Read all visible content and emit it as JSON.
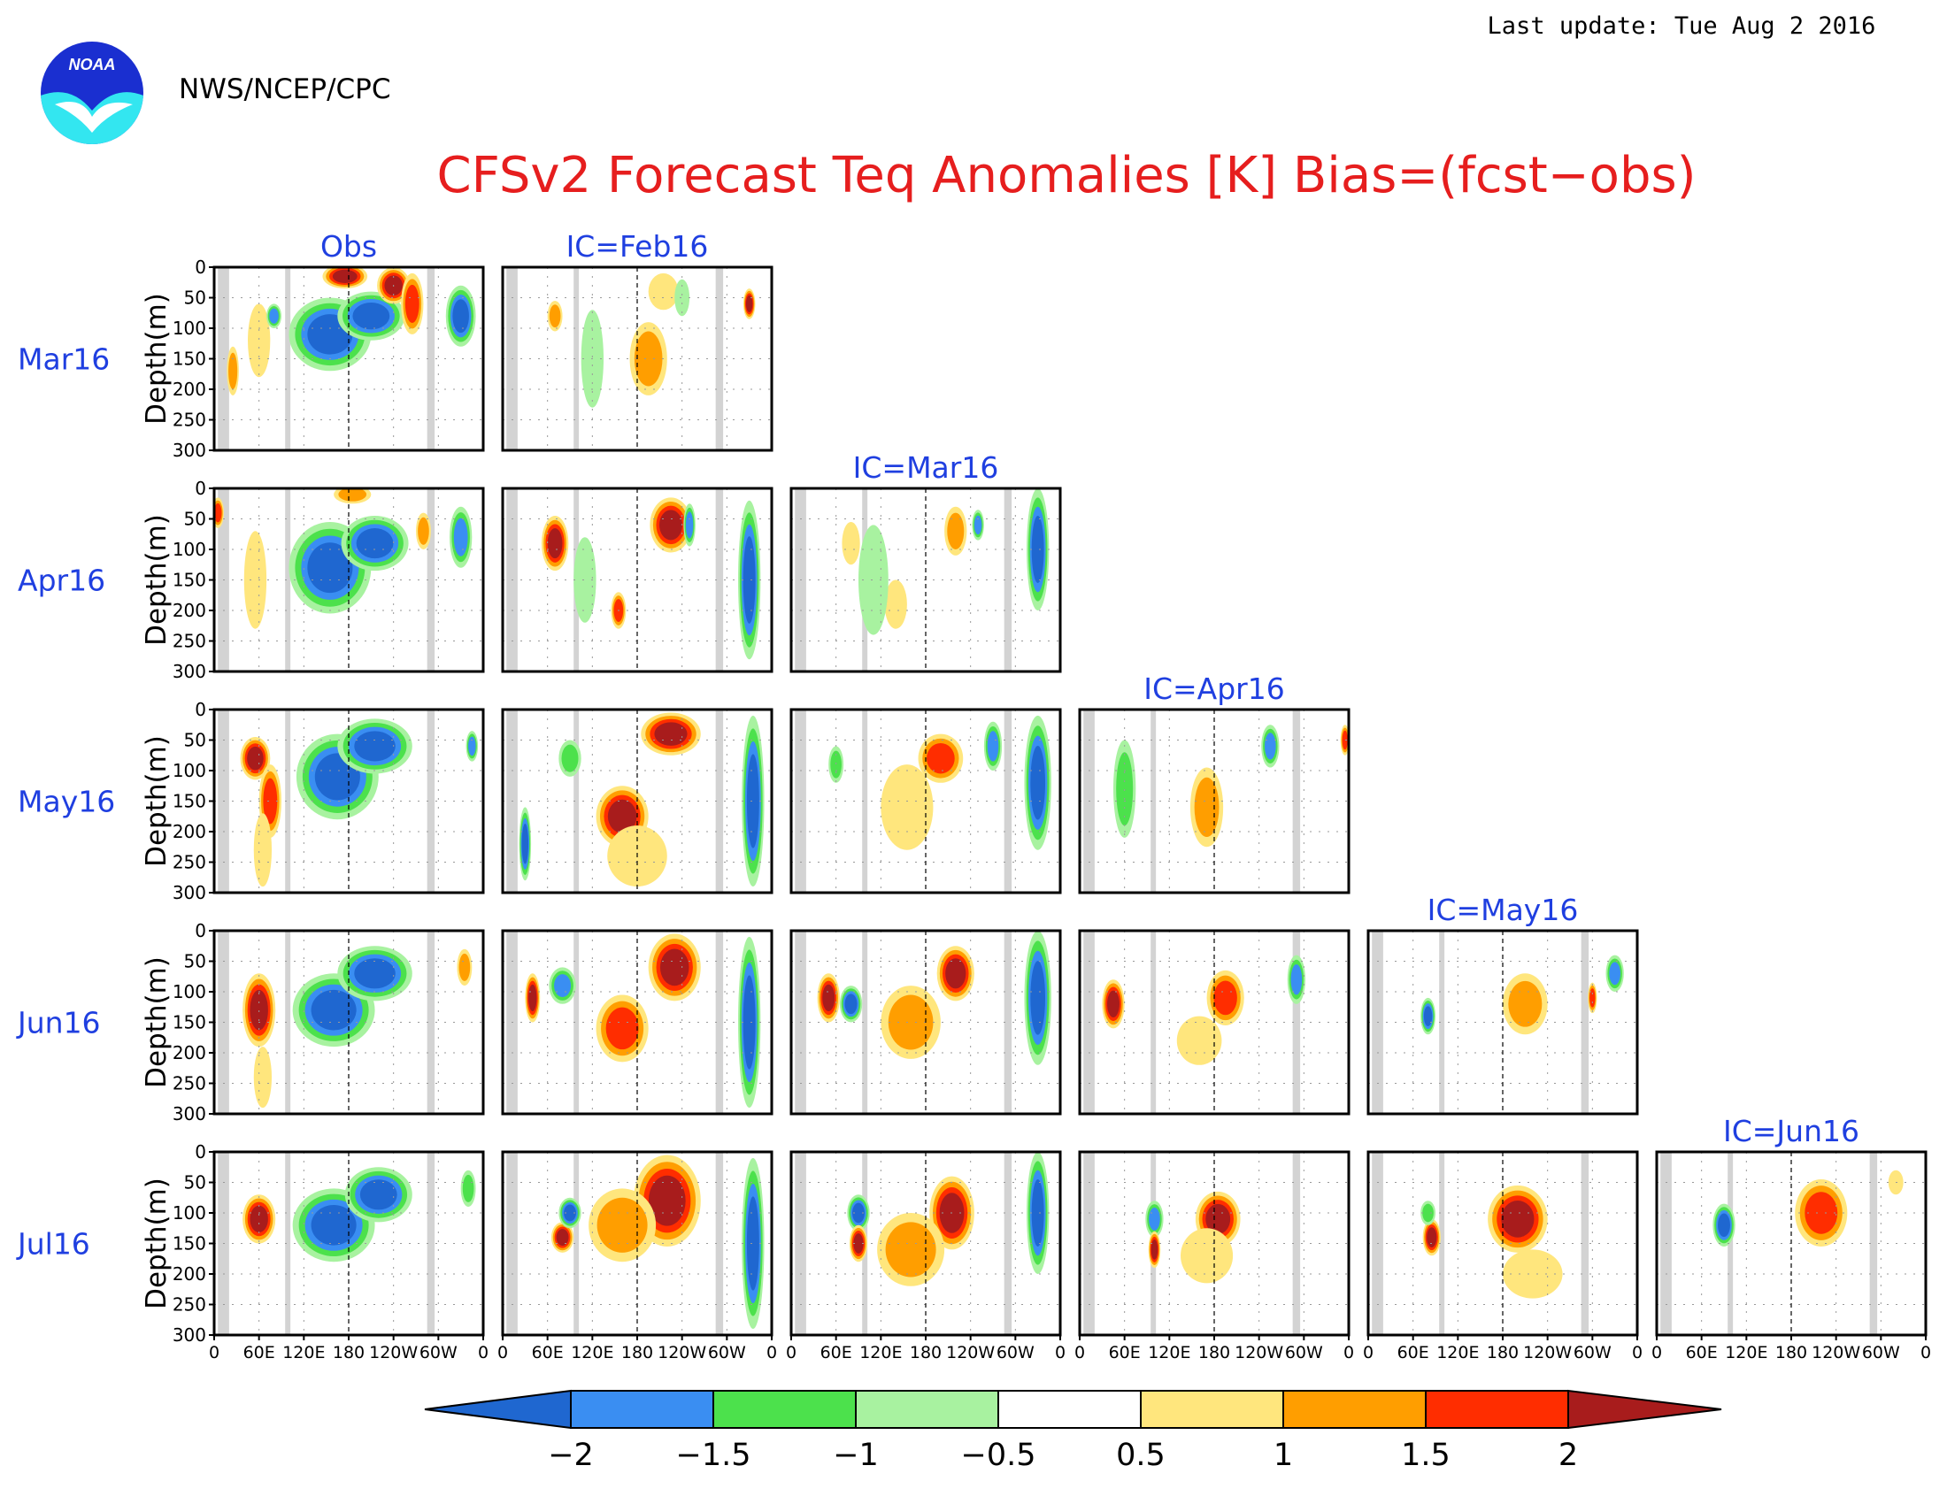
{
  "header": {
    "last_update": "Last update: Tue Aug  2 2016",
    "agency": "NWS/NCEP/CPC",
    "logo_text": "NOAA",
    "title": "CFSv2 Forecast Teq Anomalies [K] Bias=(fcst−obs)"
  },
  "chart_data": {
    "type": "heatmap",
    "title": "CFSv2 Forecast Teq Anomalies [K] Bias=(fcst−obs)",
    "ylabel": "Depth(m)",
    "ylim": [
      300,
      0
    ],
    "xlim": [
      0,
      360
    ],
    "y_ticks": [
      "0",
      "50",
      "100",
      "150",
      "200",
      "250",
      "300"
    ],
    "x_ticks": [
      "0",
      "60E",
      "120E",
      "180",
      "120W",
      "60W",
      "0"
    ],
    "columns": [
      "Obs",
      "IC=Feb16",
      "IC=Mar16",
      "IC=Apr16",
      "IC=May16",
      "IC=Jun16"
    ],
    "rows": [
      "Mar16",
      "Apr16",
      "May16",
      "Jun16",
      "Jul16"
    ],
    "grid": true,
    "legend": {
      "placement": "bottom",
      "levels": [
        "−2",
        "−1.5",
        "−1",
        "−0.5",
        "0.5",
        "1",
        "1.5",
        "2"
      ],
      "colors": [
        "#1f67d0",
        "#3a8ef2",
        "#4ce14c",
        "#a8f2a0",
        "#ffffff",
        "#ffe67d",
        "#ff9e00",
        "#ff2d00",
        "#a81c1c"
      ]
    },
    "land_color": "#d3d3d3",
    "land_bands_lon": [
      [
        5,
        20
      ],
      [
        95,
        102
      ],
      [
        285,
        295
      ]
    ],
    "panels": [
      {
        "row": 0,
        "col": 0,
        "blobs": [
          {
            "lon": 155,
            "depth": 110,
            "rlon": 55,
            "rdep": 60,
            "v": -2
          },
          {
            "lon": 210,
            "depth": 80,
            "rlon": 45,
            "rdep": 40,
            "v": -2
          },
          {
            "lon": 175,
            "depth": 15,
            "rlon": 30,
            "rdep": 20,
            "v": 2
          },
          {
            "lon": 240,
            "depth": 30,
            "rlon": 22,
            "rdep": 30,
            "v": 2
          },
          {
            "lon": 265,
            "depth": 60,
            "rlon": 15,
            "rdep": 50,
            "v": 1.5
          },
          {
            "lon": 60,
            "depth": 120,
            "rlon": 15,
            "rdep": 60,
            "v": 0.5
          },
          {
            "lon": 80,
            "depth": 80,
            "rlon": 10,
            "rdep": 20,
            "v": -1.5
          },
          {
            "lon": 330,
            "depth": 80,
            "rlon": 20,
            "rdep": 50,
            "v": -2
          },
          {
            "lon": 25,
            "depth": 170,
            "rlon": 8,
            "rdep": 40,
            "v": 1
          }
        ]
      },
      {
        "row": 0,
        "col": 1,
        "blobs": [
          {
            "lon": 70,
            "depth": 80,
            "rlon": 10,
            "rdep": 25,
            "v": 1
          },
          {
            "lon": 195,
            "depth": 150,
            "rlon": 25,
            "rdep": 60,
            "v": 1
          },
          {
            "lon": 215,
            "depth": 40,
            "rlon": 20,
            "rdep": 30,
            "v": 0.5
          },
          {
            "lon": 240,
            "depth": 50,
            "rlon": 10,
            "rdep": 30,
            "v": -0.5
          },
          {
            "lon": 330,
            "depth": 60,
            "rlon": 8,
            "rdep": 25,
            "v": 2
          },
          {
            "lon": 120,
            "depth": 150,
            "rlon": 15,
            "rdep": 80,
            "v": -0.5
          }
        ]
      },
      {
        "row": 1,
        "col": 0,
        "blobs": [
          {
            "lon": 155,
            "depth": 130,
            "rlon": 55,
            "rdep": 75,
            "v": -2
          },
          {
            "lon": 215,
            "depth": 90,
            "rlon": 45,
            "rdep": 45,
            "v": -2
          },
          {
            "lon": 185,
            "depth": 10,
            "rlon": 25,
            "rdep": 15,
            "v": 1
          },
          {
            "lon": 5,
            "depth": 40,
            "rlon": 8,
            "rdep": 25,
            "v": 1.5
          },
          {
            "lon": 55,
            "depth": 150,
            "rlon": 15,
            "rdep": 80,
            "v": 0.5
          },
          {
            "lon": 330,
            "depth": 80,
            "rlon": 15,
            "rdep": 50,
            "v": -1.5
          },
          {
            "lon": 280,
            "depth": 70,
            "rlon": 10,
            "rdep": 30,
            "v": 1
          }
        ]
      },
      {
        "row": 1,
        "col": 1,
        "blobs": [
          {
            "lon": 70,
            "depth": 90,
            "rlon": 18,
            "rdep": 45,
            "v": 2
          },
          {
            "lon": 225,
            "depth": 60,
            "rlon": 28,
            "rdep": 45,
            "v": 2
          },
          {
            "lon": 155,
            "depth": 200,
            "rlon": 10,
            "rdep": 30,
            "v": 1.5
          },
          {
            "lon": 330,
            "depth": 150,
            "rlon": 15,
            "rdep": 130,
            "v": -2
          },
          {
            "lon": 250,
            "depth": 60,
            "rlon": 8,
            "rdep": 35,
            "v": -1.5
          },
          {
            "lon": 110,
            "depth": 150,
            "rlon": 15,
            "rdep": 70,
            "v": -0.5
          }
        ]
      },
      {
        "row": 1,
        "col": 2,
        "blobs": [
          {
            "lon": 220,
            "depth": 70,
            "rlon": 15,
            "rdep": 40,
            "v": 1
          },
          {
            "lon": 80,
            "depth": 90,
            "rlon": 12,
            "rdep": 35,
            "v": 0.5
          },
          {
            "lon": 140,
            "depth": 190,
            "rlon": 15,
            "rdep": 40,
            "v": 0.5
          },
          {
            "lon": 250,
            "depth": 60,
            "rlon": 8,
            "rdep": 25,
            "v": -1.5
          },
          {
            "lon": 330,
            "depth": 100,
            "rlon": 15,
            "rdep": 100,
            "v": -2
          },
          {
            "lon": 110,
            "depth": 150,
            "rlon": 20,
            "rdep": 90,
            "v": -0.5
          }
        ]
      },
      {
        "row": 2,
        "col": 0,
        "blobs": [
          {
            "lon": 165,
            "depth": 110,
            "rlon": 55,
            "rdep": 70,
            "v": -2
          },
          {
            "lon": 215,
            "depth": 60,
            "rlon": 50,
            "rdep": 45,
            "v": -2
          },
          {
            "lon": 55,
            "depth": 80,
            "rlon": 20,
            "rdep": 35,
            "v": 2
          },
          {
            "lon": 75,
            "depth": 150,
            "rlon": 15,
            "rdep": 60,
            "v": 1.5
          },
          {
            "lon": 65,
            "depth": 230,
            "rlon": 12,
            "rdep": 60,
            "v": 0.5
          },
          {
            "lon": 345,
            "depth": 60,
            "rlon": 8,
            "rdep": 25,
            "v": -1.5
          }
        ]
      },
      {
        "row": 2,
        "col": 1,
        "blobs": [
          {
            "lon": 160,
            "depth": 175,
            "rlon": 35,
            "rdep": 50,
            "v": 2
          },
          {
            "lon": 225,
            "depth": 40,
            "rlon": 40,
            "rdep": 35,
            "v": 2
          },
          {
            "lon": 335,
            "depth": 150,
            "rlon": 15,
            "rdep": 140,
            "v": -2
          },
          {
            "lon": 30,
            "depth": 220,
            "rlon": 8,
            "rdep": 60,
            "v": -2
          },
          {
            "lon": 90,
            "depth": 80,
            "rlon": 15,
            "rdep": 30,
            "v": -1
          },
          {
            "lon": 180,
            "depth": 240,
            "rlon": 40,
            "rdep": 50,
            "v": 0.5
          }
        ]
      },
      {
        "row": 2,
        "col": 2,
        "blobs": [
          {
            "lon": 200,
            "depth": 80,
            "rlon": 30,
            "rdep": 40,
            "v": 1.5
          },
          {
            "lon": 155,
            "depth": 160,
            "rlon": 35,
            "rdep": 70,
            "v": 0.5
          },
          {
            "lon": 270,
            "depth": 60,
            "rlon": 12,
            "rdep": 40,
            "v": -1.5
          },
          {
            "lon": 330,
            "depth": 120,
            "rlon": 18,
            "rdep": 110,
            "v": -2
          },
          {
            "lon": 60,
            "depth": 90,
            "rlon": 10,
            "rdep": 30,
            "v": -1
          }
        ]
      },
      {
        "row": 2,
        "col": 3,
        "blobs": [
          {
            "lon": 170,
            "depth": 160,
            "rlon": 22,
            "rdep": 65,
            "v": 1
          },
          {
            "lon": 60,
            "depth": 130,
            "rlon": 15,
            "rdep": 80,
            "v": -1
          },
          {
            "lon": 255,
            "depth": 60,
            "rlon": 12,
            "rdep": 35,
            "v": -1.5
          },
          {
            "lon": 355,
            "depth": 50,
            "rlon": 6,
            "rdep": 25,
            "v": 1.5
          }
        ]
      },
      {
        "row": 3,
        "col": 0,
        "blobs": [
          {
            "lon": 60,
            "depth": 130,
            "rlon": 22,
            "rdep": 60,
            "v": 2
          },
          {
            "lon": 160,
            "depth": 130,
            "rlon": 55,
            "rdep": 60,
            "v": -2
          },
          {
            "lon": 215,
            "depth": 70,
            "rlon": 50,
            "rdep": 45,
            "v": -2
          },
          {
            "lon": 65,
            "depth": 240,
            "rlon": 12,
            "rdep": 50,
            "v": 0.5
          },
          {
            "lon": 335,
            "depth": 60,
            "rlon": 10,
            "rdep": 30,
            "v": 1
          }
        ]
      },
      {
        "row": 3,
        "col": 1,
        "blobs": [
          {
            "lon": 230,
            "depth": 60,
            "rlon": 35,
            "rdep": 55,
            "v": 2
          },
          {
            "lon": 160,
            "depth": 160,
            "rlon": 35,
            "rdep": 55,
            "v": 1.5
          },
          {
            "lon": 40,
            "depth": 110,
            "rlon": 10,
            "rdep": 40,
            "v": 2
          },
          {
            "lon": 80,
            "depth": 90,
            "rlon": 18,
            "rdep": 30,
            "v": -1.5
          },
          {
            "lon": 330,
            "depth": 150,
            "rlon": 15,
            "rdep": 140,
            "v": -2
          }
        ]
      },
      {
        "row": 3,
        "col": 2,
        "blobs": [
          {
            "lon": 220,
            "depth": 70,
            "rlon": 25,
            "rdep": 45,
            "v": 2
          },
          {
            "lon": 50,
            "depth": 110,
            "rlon": 15,
            "rdep": 40,
            "v": 2
          },
          {
            "lon": 80,
            "depth": 120,
            "rlon": 15,
            "rdep": 30,
            "v": -2
          },
          {
            "lon": 160,
            "depth": 150,
            "rlon": 40,
            "rdep": 60,
            "v": 1
          },
          {
            "lon": 330,
            "depth": 110,
            "rlon": 18,
            "rdep": 110,
            "v": -2
          }
        ]
      },
      {
        "row": 3,
        "col": 3,
        "blobs": [
          {
            "lon": 195,
            "depth": 110,
            "rlon": 25,
            "rdep": 45,
            "v": 1.5
          },
          {
            "lon": 45,
            "depth": 120,
            "rlon": 15,
            "rdep": 40,
            "v": 2
          },
          {
            "lon": 290,
            "depth": 80,
            "rlon": 12,
            "rdep": 40,
            "v": -1.5
          },
          {
            "lon": 160,
            "depth": 180,
            "rlon": 30,
            "rdep": 40,
            "v": 0.5
          }
        ]
      },
      {
        "row": 3,
        "col": 4,
        "blobs": [
          {
            "lon": 80,
            "depth": 140,
            "rlon": 10,
            "rdep": 30,
            "v": -2
          },
          {
            "lon": 210,
            "depth": 120,
            "rlon": 30,
            "rdep": 50,
            "v": 1
          },
          {
            "lon": 330,
            "depth": 70,
            "rlon": 12,
            "rdep": 30,
            "v": -1.5
          },
          {
            "lon": 300,
            "depth": 110,
            "rlon": 6,
            "rdep": 25,
            "v": 1.5
          }
        ]
      },
      {
        "row": 4,
        "col": 0,
        "blobs": [
          {
            "lon": 60,
            "depth": 110,
            "rlon": 22,
            "rdep": 40,
            "v": 2
          },
          {
            "lon": 160,
            "depth": 120,
            "rlon": 55,
            "rdep": 60,
            "v": -2
          },
          {
            "lon": 220,
            "depth": 70,
            "rlon": 45,
            "rdep": 45,
            "v": -2
          },
          {
            "lon": 340,
            "depth": 60,
            "rlon": 10,
            "rdep": 30,
            "v": -1
          }
        ]
      },
      {
        "row": 4,
        "col": 1,
        "blobs": [
          {
            "lon": 220,
            "depth": 80,
            "rlon": 45,
            "rdep": 75,
            "v": 2
          },
          {
            "lon": 160,
            "depth": 120,
            "rlon": 45,
            "rdep": 60,
            "v": 1
          },
          {
            "lon": 80,
            "depth": 140,
            "rlon": 15,
            "rdep": 25,
            "v": 2
          },
          {
            "lon": 90,
            "depth": 100,
            "rlon": 15,
            "rdep": 25,
            "v": -2
          },
          {
            "lon": 335,
            "depth": 150,
            "rlon": 15,
            "rdep": 140,
            "v": -2
          }
        ]
      },
      {
        "row": 4,
        "col": 2,
        "blobs": [
          {
            "lon": 215,
            "depth": 100,
            "rlon": 30,
            "rdep": 60,
            "v": 2
          },
          {
            "lon": 90,
            "depth": 100,
            "rlon": 15,
            "rdep": 30,
            "v": -2
          },
          {
            "lon": 90,
            "depth": 150,
            "rlon": 12,
            "rdep": 30,
            "v": 2
          },
          {
            "lon": 160,
            "depth": 160,
            "rlon": 45,
            "rdep": 60,
            "v": 1
          },
          {
            "lon": 330,
            "depth": 100,
            "rlon": 15,
            "rdep": 100,
            "v": -2
          }
        ]
      },
      {
        "row": 4,
        "col": 3,
        "blobs": [
          {
            "lon": 185,
            "depth": 110,
            "rlon": 30,
            "rdep": 45,
            "v": 2
          },
          {
            "lon": 100,
            "depth": 110,
            "rlon": 12,
            "rdep": 30,
            "v": -1.5
          },
          {
            "lon": 100,
            "depth": 160,
            "rlon": 8,
            "rdep": 30,
            "v": 2
          },
          {
            "lon": 170,
            "depth": 170,
            "rlon": 35,
            "rdep": 45,
            "v": 0.5
          }
        ]
      },
      {
        "row": 4,
        "col": 4,
        "blobs": [
          {
            "lon": 200,
            "depth": 110,
            "rlon": 40,
            "rdep": 55,
            "v": 2
          },
          {
            "lon": 85,
            "depth": 140,
            "rlon": 12,
            "rdep": 30,
            "v": 2
          },
          {
            "lon": 80,
            "depth": 100,
            "rlon": 10,
            "rdep": 20,
            "v": -1
          },
          {
            "lon": 220,
            "depth": 200,
            "rlon": 40,
            "rdep": 40,
            "v": 0.5
          }
        ]
      },
      {
        "row": 4,
        "col": 5,
        "blobs": [
          {
            "lon": 90,
            "depth": 120,
            "rlon": 15,
            "rdep": 35,
            "v": -2
          },
          {
            "lon": 220,
            "depth": 100,
            "rlon": 35,
            "rdep": 55,
            "v": 1.5
          },
          {
            "lon": 320,
            "depth": 50,
            "rlon": 10,
            "rdep": 20,
            "v": 0.5
          }
        ]
      }
    ]
  }
}
